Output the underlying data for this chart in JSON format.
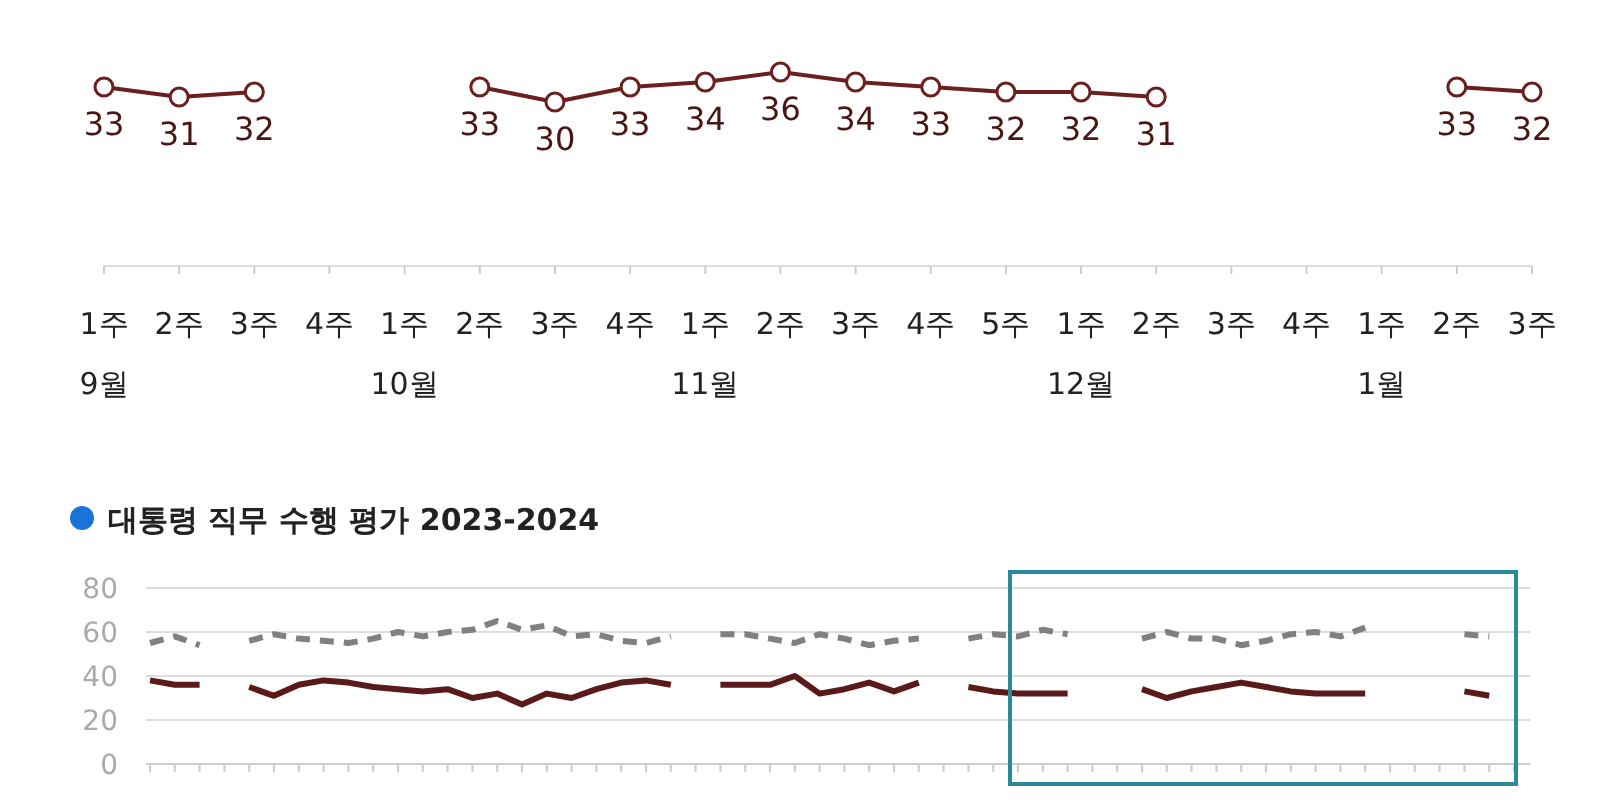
{
  "chart_data": [
    {
      "type": "line",
      "categories": [
        "1주\n9월",
        "2주",
        "3주",
        "4주",
        "1주\n10월",
        "2주",
        "3주",
        "4주",
        "1주\n11월",
        "2주",
        "3주",
        "4주",
        "5주",
        "1주\n12월",
        "2주",
        "3주",
        "4주",
        "1주\n1월",
        "2주",
        "3주"
      ],
      "values": [
        33,
        31,
        32,
        null,
        null,
        33,
        30,
        33,
        34,
        36,
        34,
        33,
        32,
        32,
        31,
        null,
        null,
        null,
        33,
        32
      ],
      "color": "#6b1f1f",
      "marker": "circle",
      "data_labels": true
    },
    {
      "type": "line",
      "title": "대통령 직무 수행 평가 2023-2024",
      "categories": [
        null,
        null,
        null,
        null,
        null,
        null,
        null,
        null,
        null,
        null,
        null,
        null,
        null,
        null,
        null,
        null,
        null,
        null,
        null,
        null,
        null,
        null,
        null,
        null,
        null,
        null,
        null,
        null,
        null,
        null,
        null,
        null,
        null,
        null,
        null,
        null,
        null,
        null,
        null,
        null,
        null,
        null,
        null,
        null,
        null,
        null,
        null,
        null,
        null,
        null,
        null,
        null,
        null,
        null,
        null,
        null
      ],
      "series": [
        {
          "color": "#5a1a1a",
          "line_style": "solid",
          "values": [
            38,
            36,
            36,
            null,
            35,
            31,
            36,
            38,
            37,
            35,
            34,
            33,
            34,
            30,
            32,
            27,
            32,
            30,
            34,
            37,
            38,
            36,
            null,
            36,
            36,
            36,
            40,
            32,
            34,
            37,
            33,
            37,
            null,
            35,
            33,
            32,
            32,
            32,
            null,
            null,
            34,
            30,
            33,
            35,
            37,
            35,
            33,
            32,
            32,
            32,
            null,
            null,
            null,
            33,
            31,
            null
          ]
        },
        {
          "color": "#808080",
          "line_style": "dashed",
          "values": [
            55,
            58,
            54,
            null,
            56,
            59,
            57,
            56,
            55,
            57,
            60,
            58,
            60,
            61,
            65,
            61,
            63,
            58,
            59,
            56,
            55,
            58,
            null,
            59,
            59,
            57,
            55,
            59,
            57,
            54,
            56,
            57,
            null,
            57,
            59,
            58,
            61,
            59,
            null,
            null,
            57,
            60,
            57,
            57,
            54,
            56,
            59,
            60,
            58,
            62,
            null,
            null,
            null,
            59,
            58,
            null
          ]
        }
      ],
      "ylim": [
        0,
        80
      ],
      "yticks": [
        0,
        20,
        40,
        60,
        80
      ],
      "grid": "y"
    }
  ]
}
